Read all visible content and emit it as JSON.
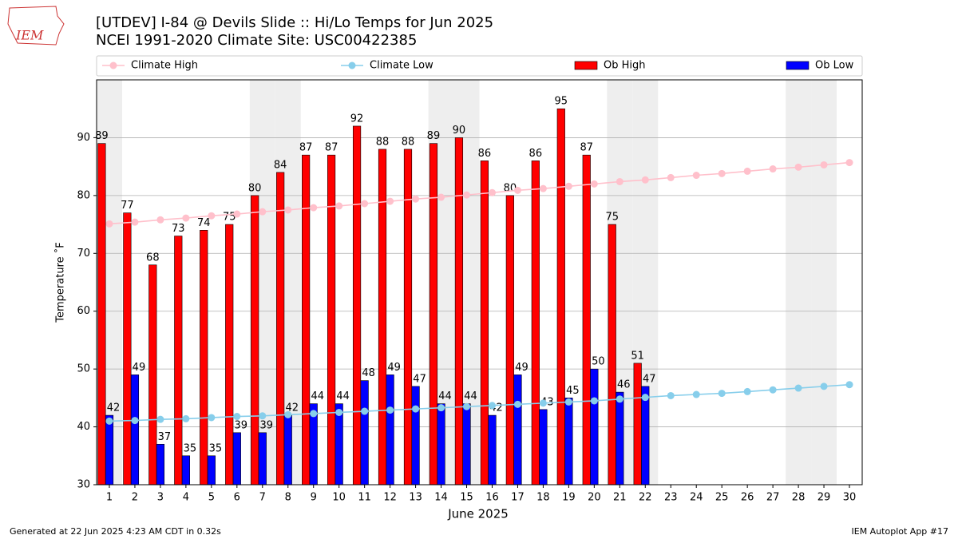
{
  "chart_data": {
    "type": "bar_line",
    "title": "[UTDEV] I-84 @ Devils Slide  :: Hi/Lo Temps for Jun 2025",
    "subtitle": "NCEI 1991-2020 Climate Site: USC00422385",
    "xlabel": "June 2025",
    "ylabel": "Temperature $^\\circ$F",
    "logo_text": "IEM",
    "footer_left": "Generated at 22 Jun 2025 4:23 AM CDT in 0.32s",
    "footer_right": "IEM Autoplot App #17",
    "x": [
      1,
      2,
      3,
      4,
      5,
      6,
      7,
      8,
      9,
      10,
      11,
      12,
      13,
      14,
      15,
      16,
      17,
      18,
      19,
      20,
      21,
      22,
      23,
      24,
      25,
      26,
      27,
      28,
      29,
      30
    ],
    "xticks": [
      1,
      2,
      3,
      4,
      5,
      6,
      7,
      8,
      9,
      10,
      11,
      12,
      13,
      14,
      15,
      16,
      17,
      18,
      19,
      20,
      21,
      22,
      23,
      24,
      25,
      26,
      27,
      28,
      29,
      30
    ],
    "xlim": [
      0.5,
      30.5
    ],
    "ylim": [
      30,
      100
    ],
    "yticks": [
      30,
      40,
      50,
      60,
      70,
      80,
      90
    ],
    "grid": true,
    "shaded_days": [
      1,
      7,
      8,
      14,
      15,
      21,
      22,
      28,
      29
    ],
    "series": [
      {
        "name": "Climate High",
        "kind": "line",
        "color": "#ffc0cb",
        "values": [
          75.1,
          75.4,
          75.8,
          76.1,
          76.5,
          76.8,
          77.2,
          77.5,
          77.9,
          78.2,
          78.6,
          79.0,
          79.4,
          79.7,
          80.1,
          80.5,
          80.9,
          81.2,
          81.6,
          82.0,
          82.4,
          82.7,
          83.1,
          83.5,
          83.8,
          84.2,
          84.6,
          84.9,
          85.3,
          85.7
        ]
      },
      {
        "name": "Climate Low",
        "kind": "line",
        "color": "#87ceeb",
        "values": [
          41.0,
          41.1,
          41.3,
          41.4,
          41.6,
          41.8,
          41.9,
          42.1,
          42.3,
          42.5,
          42.7,
          42.9,
          43.1,
          43.3,
          43.5,
          43.7,
          43.9,
          44.1,
          44.3,
          44.5,
          44.8,
          45.1,
          45.4,
          45.6,
          45.8,
          46.1,
          46.4,
          46.7,
          47.0,
          47.3
        ]
      },
      {
        "name": "Ob High",
        "kind": "bar",
        "color": "#ff0000",
        "values": [
          89,
          77,
          68,
          73,
          74,
          75,
          80,
          84,
          87,
          87,
          92,
          88,
          88,
          89,
          90,
          86,
          80,
          86,
          95,
          87,
          75,
          51,
          null,
          null,
          null,
          null,
          null,
          null,
          null,
          null
        ]
      },
      {
        "name": "Ob Low",
        "kind": "bar",
        "color": "#0000ff",
        "values": [
          42,
          49,
          37,
          35,
          35,
          39,
          39,
          42,
          44,
          44,
          48,
          49,
          47,
          44,
          44,
          42,
          49,
          43,
          45,
          50,
          46,
          47,
          null,
          null,
          null,
          null,
          null,
          null,
          null,
          null
        ]
      }
    ]
  }
}
